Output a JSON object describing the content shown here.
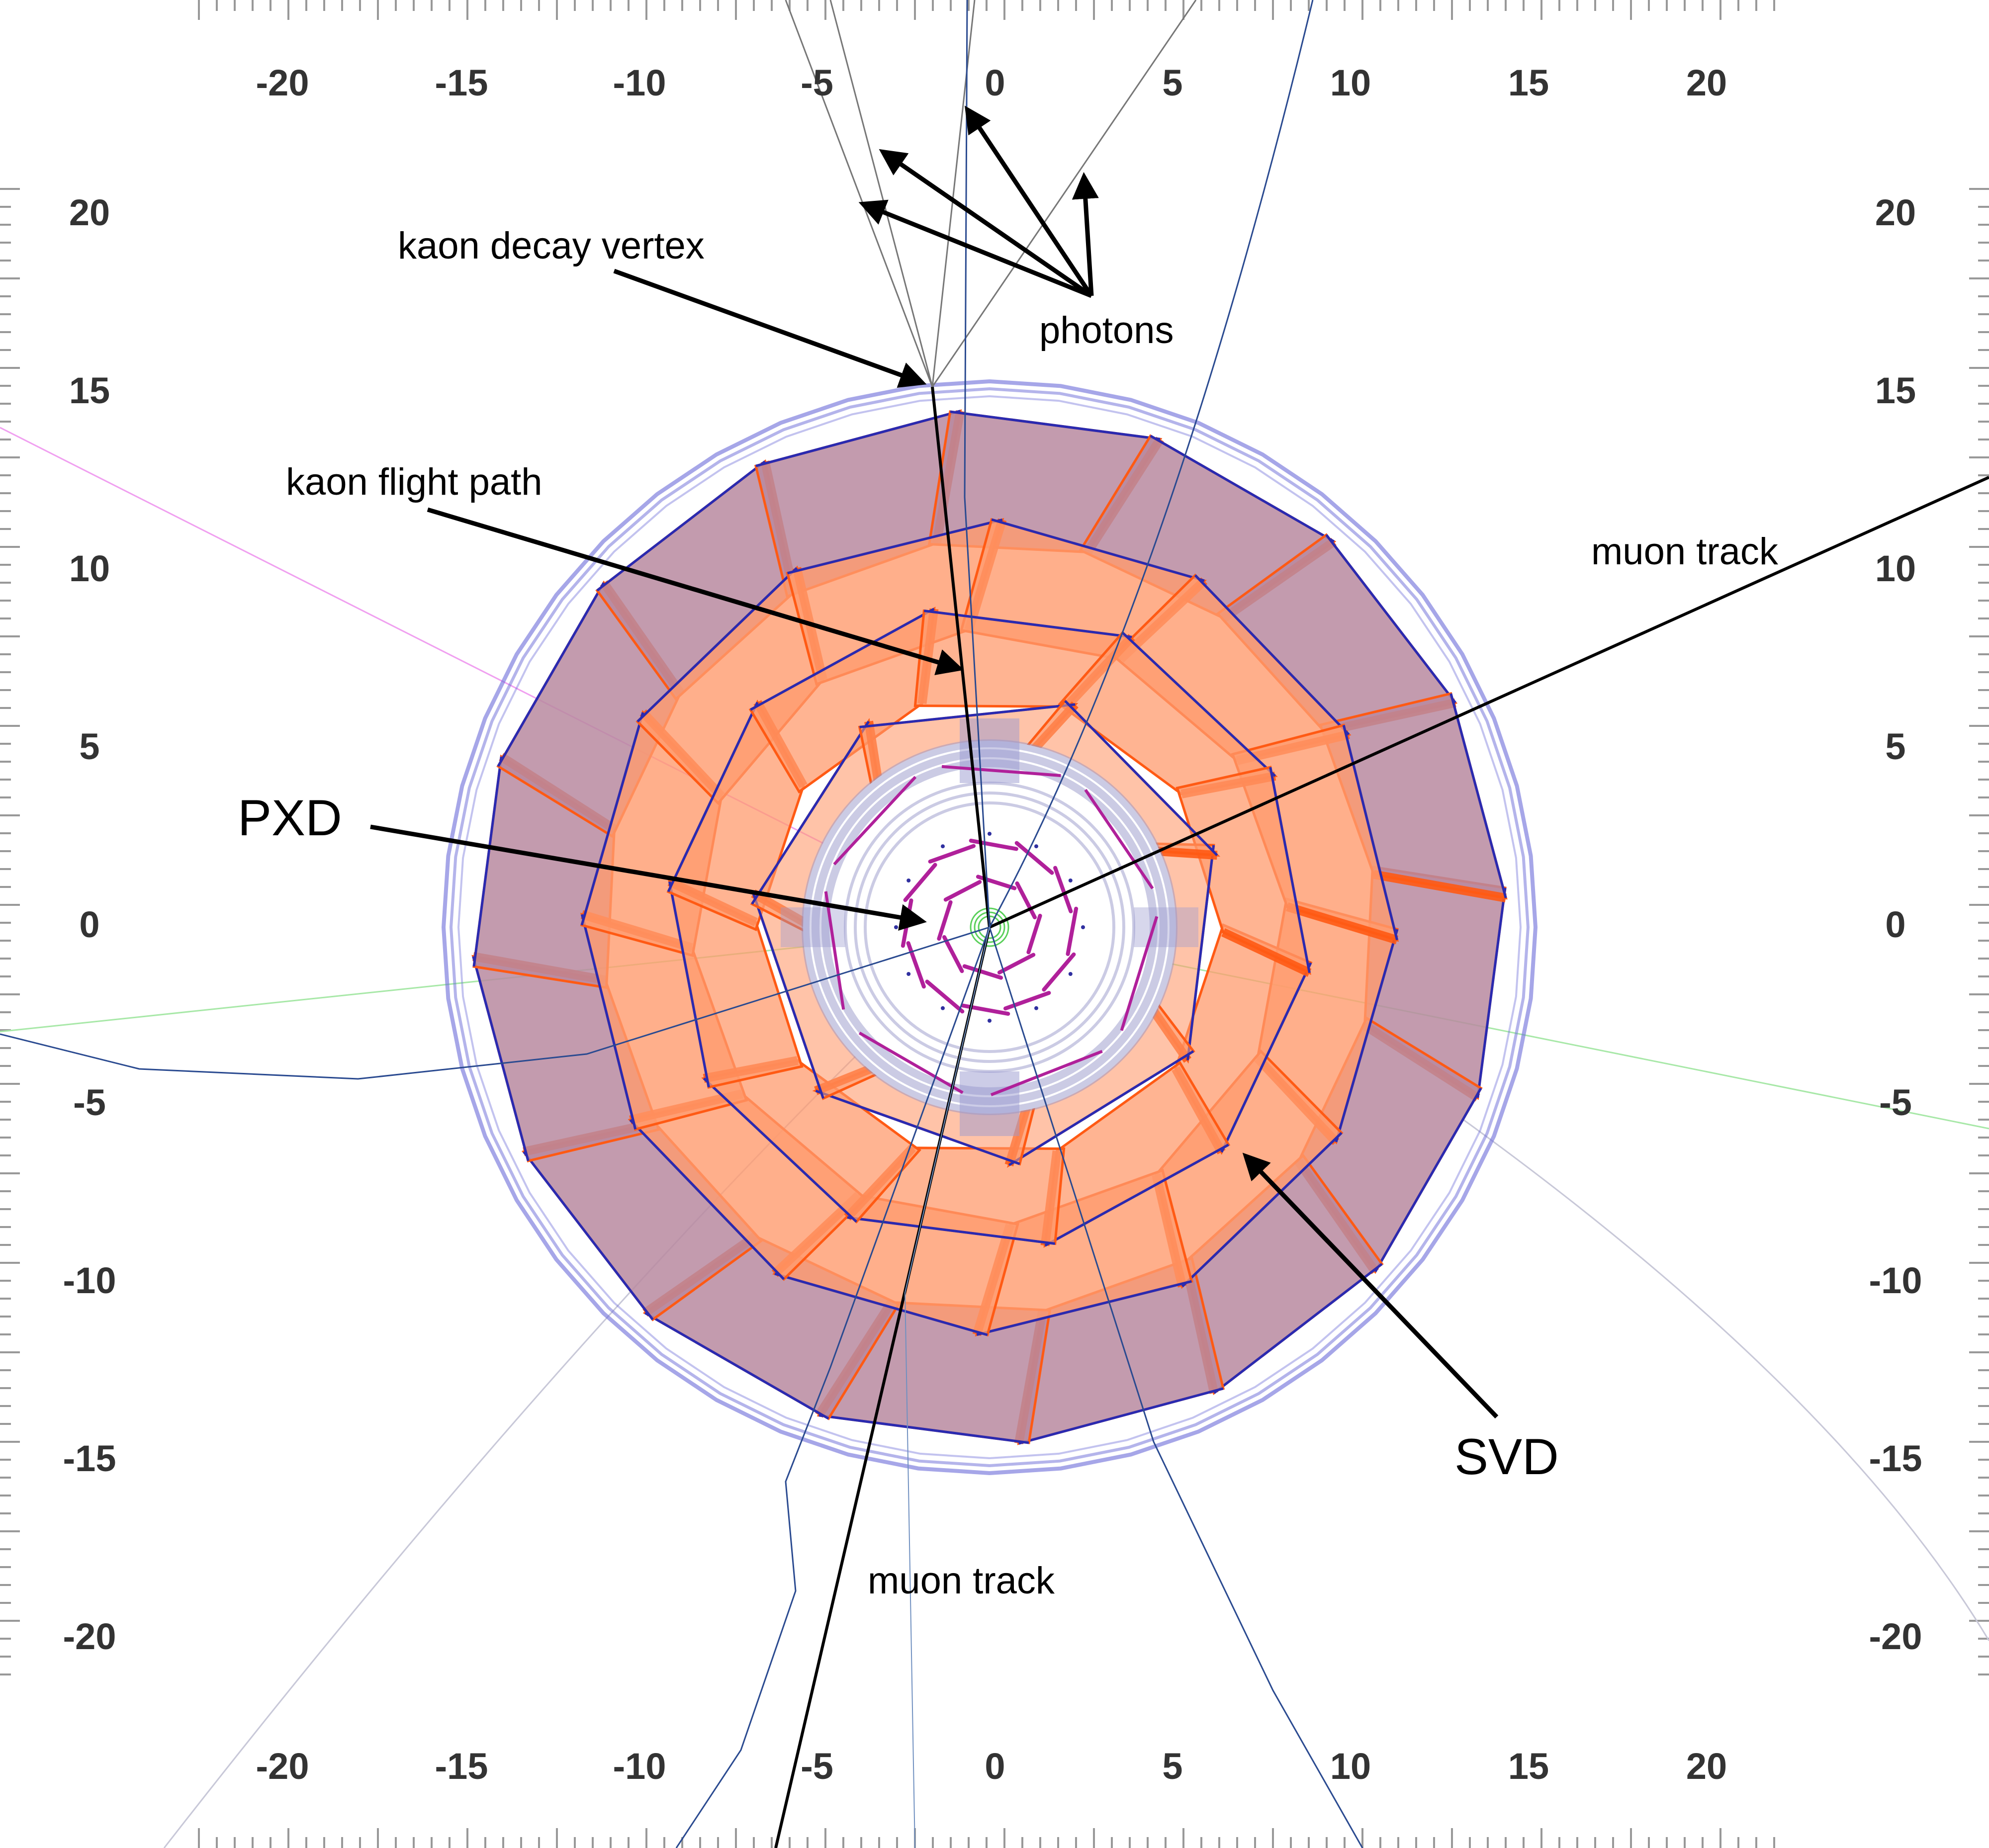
{
  "axes": {
    "x_ticks": [
      "-20",
      "-15",
      "-10",
      "-5",
      "0",
      "5",
      "10",
      "15",
      "20"
    ],
    "y_ticks": [
      "20",
      "15",
      "10",
      "5",
      "0",
      "-5",
      "-10",
      "-15",
      "-20"
    ]
  },
  "annotations": {
    "kaon_decay_vertex": "kaon decay vertex",
    "photons": "photons",
    "kaon_flight_path": "kaon flight path",
    "muon_track_right": "muon track",
    "pxd": "PXD",
    "svd": "SVD",
    "muon_track_bottom": "muon track"
  },
  "colors": {
    "outer_ring": "#6a6ad8",
    "svd_outer_module": "#b98aa0",
    "svd_inner_module": "#ff9b6e",
    "svd_edge": "#ff5a14",
    "module_line": "#2a2ab0",
    "pxd": "#b0209a",
    "track": "#1f3f8a",
    "photon": "#888888",
    "tick_text": "#333333"
  }
}
